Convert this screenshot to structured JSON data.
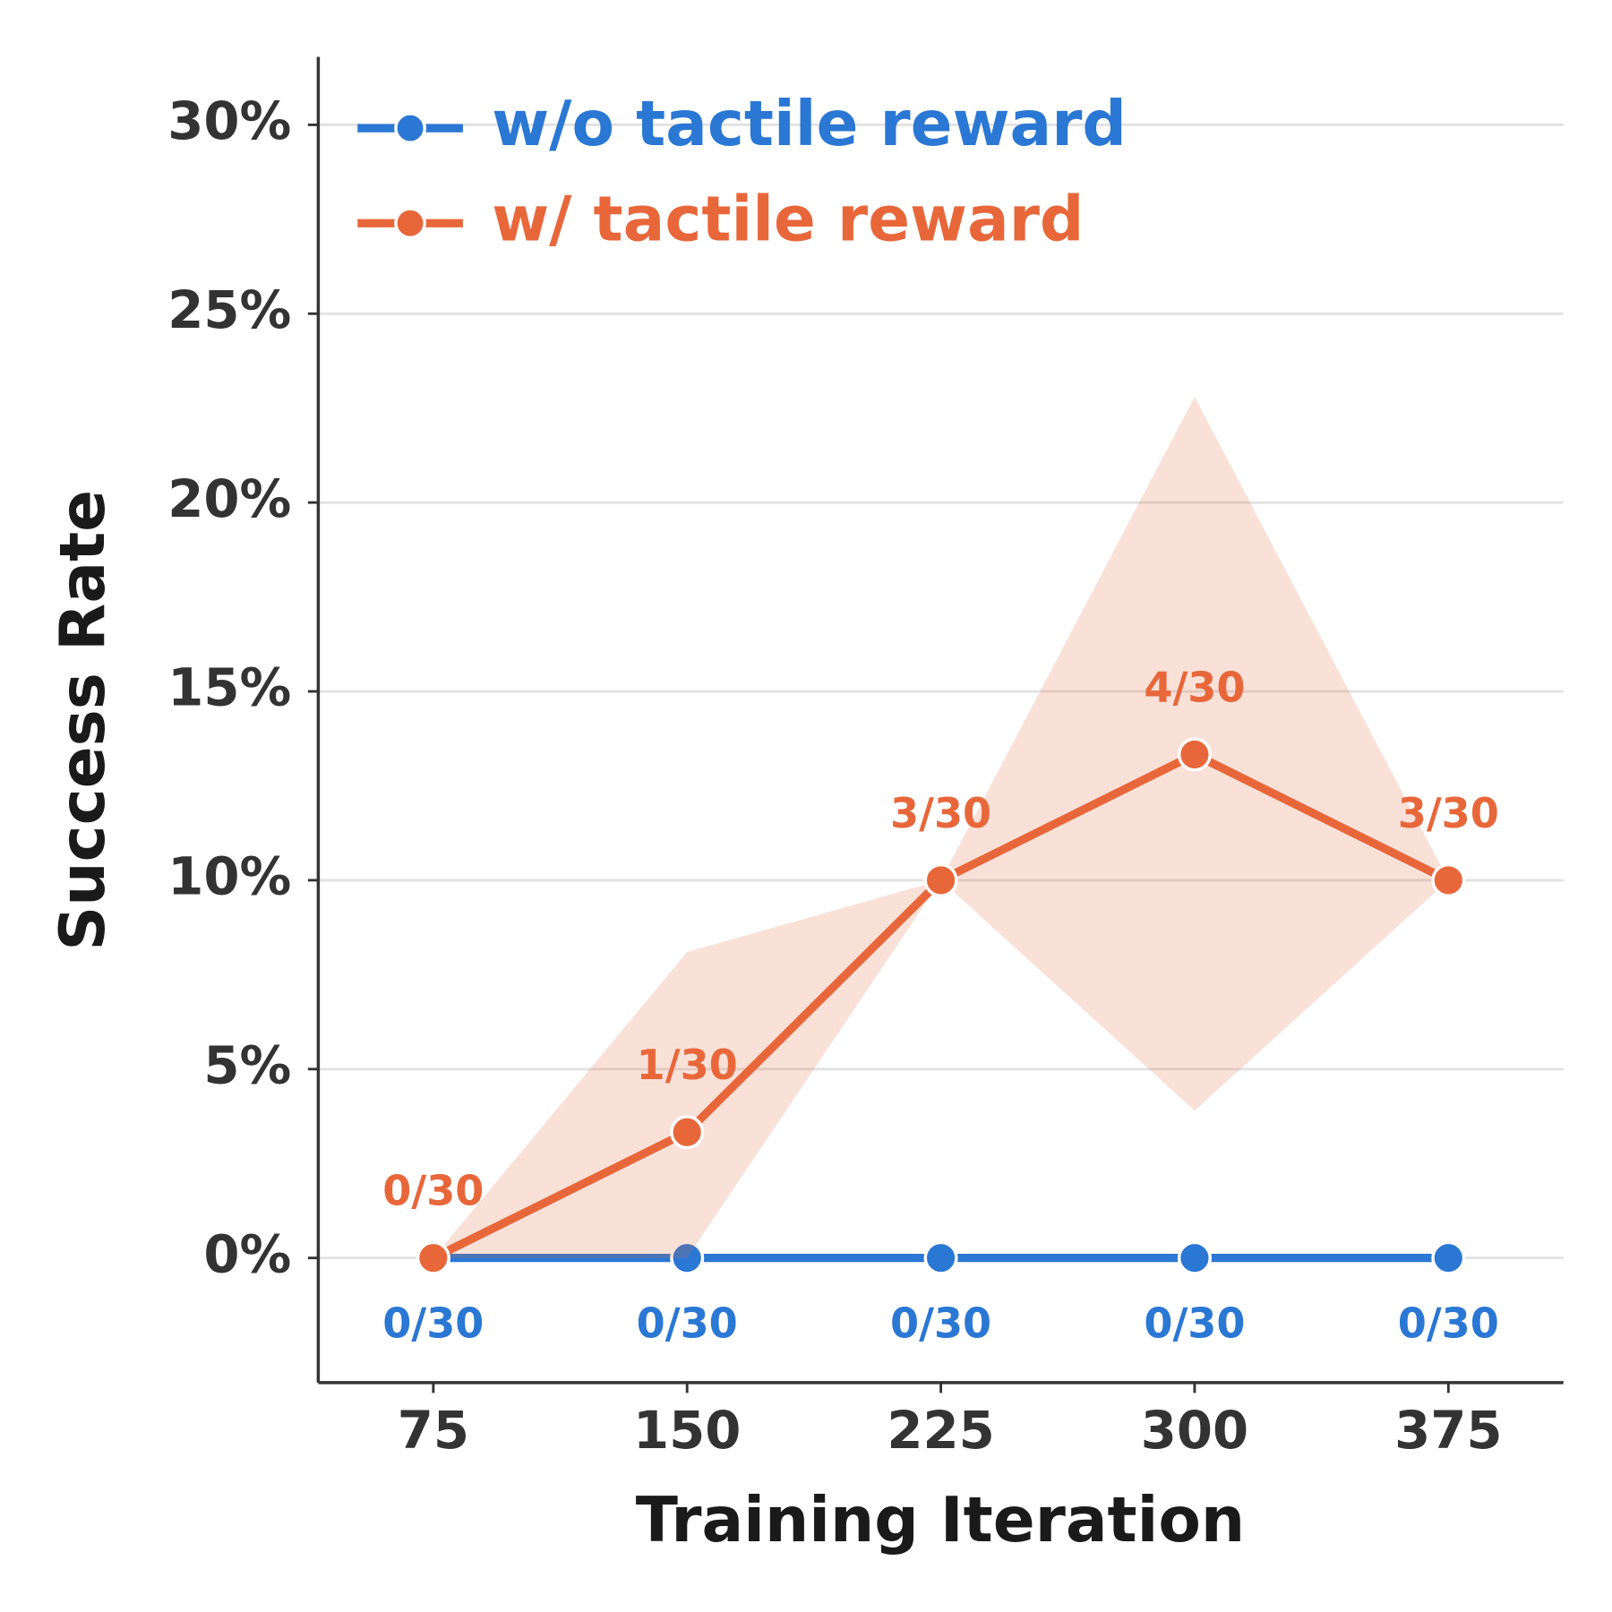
{
  "chart_data": {
    "type": "line",
    "x_label": "Training Iteration",
    "y_label": "Success Rate",
    "x": [
      75,
      150,
      225,
      300,
      375
    ],
    "xlim": [
      41,
      409
    ],
    "xticks": [
      75,
      150,
      225,
      300,
      375
    ],
    "ylim": [
      -3.3,
      31.8
    ],
    "yticks": [
      {
        "value": 0,
        "label": "0%"
      },
      {
        "value": 5,
        "label": "5%"
      },
      {
        "value": 10,
        "label": "10%"
      },
      {
        "value": 15,
        "label": "15%"
      },
      {
        "value": 20,
        "label": "20%"
      },
      {
        "value": 25,
        "label": "25%"
      },
      {
        "value": 30,
        "label": "30%"
      }
    ],
    "grid": true,
    "legend": "upper left",
    "series": [
      {
        "name": "w/o tactile reward",
        "color": "#2a77d4",
        "values": [
          0,
          0,
          0,
          0,
          0
        ],
        "value_labels": [
          "0/30",
          "0/30",
          "0/30",
          "0/30",
          "0/30"
        ],
        "label_side": "below"
      },
      {
        "name": "w/ tactile reward",
        "color": "#e8673a",
        "values": [
          0,
          3.33,
          10,
          13.33,
          10
        ],
        "value_labels": [
          "0/30",
          "1/30",
          "3/30",
          "4/30",
          "3/30"
        ],
        "label_side": "above",
        "ci_lower": [
          0,
          0,
          10,
          3.9,
          10
        ],
        "ci_upper": [
          0,
          8.1,
          10,
          22.8,
          10
        ]
      }
    ]
  }
}
